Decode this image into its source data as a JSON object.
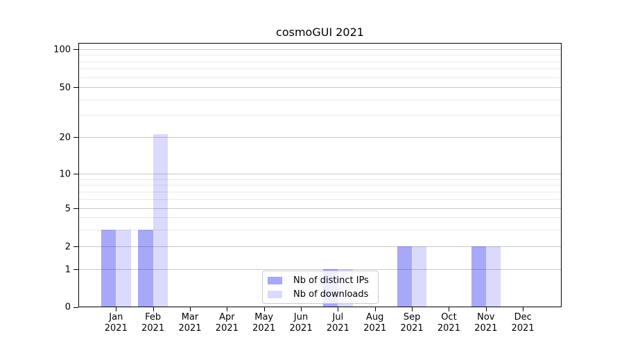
{
  "title": "cosmoGUI 2021",
  "chart_data": {
    "type": "bar",
    "title": "cosmoGUI 2021",
    "categories": [
      {
        "month": "Jan",
        "year": "2021"
      },
      {
        "month": "Feb",
        "year": "2021"
      },
      {
        "month": "Mar",
        "year": "2021"
      },
      {
        "month": "Apr",
        "year": "2021"
      },
      {
        "month": "May",
        "year": "2021"
      },
      {
        "month": "Jun",
        "year": "2021"
      },
      {
        "month": "Jul",
        "year": "2021"
      },
      {
        "month": "Aug",
        "year": "2021"
      },
      {
        "month": "Sep",
        "year": "2021"
      },
      {
        "month": "Oct",
        "year": "2021"
      },
      {
        "month": "Nov",
        "year": "2021"
      },
      {
        "month": "Dec",
        "year": "2021"
      }
    ],
    "series": [
      {
        "name": "Nb of distinct IPs",
        "color": "rgba(10,10,235,0.355)",
        "color_hex_on_white": "#a8a8f8",
        "values": [
          3,
          3,
          0,
          0,
          0,
          0,
          1,
          0,
          2,
          0,
          2,
          0
        ]
      },
      {
        "name": "Nb of downloads",
        "color": "rgba(10,10,235,0.15)",
        "color_hex_on_white": "#d8d8fc",
        "values": [
          3,
          21,
          0,
          0,
          0,
          0,
          1,
          0,
          2,
          0,
          2,
          0
        ]
      }
    ],
    "y_axis": {
      "scale": "symlog-like",
      "tick_labels": [
        "100",
        "50",
        "20",
        "10",
        "5",
        "2",
        "1",
        "0"
      ],
      "major_ticks": [
        100,
        50,
        20,
        10,
        5,
        2,
        1,
        0
      ],
      "minor_gridlines": [
        3,
        4,
        6,
        7,
        8,
        9,
        30,
        40,
        60,
        70,
        80,
        90
      ],
      "ylim": [
        0,
        110
      ]
    },
    "x_axis": {
      "ylabel": "",
      "tick_label_lines": 2
    },
    "legend": {
      "position": "lower center",
      "entries": [
        "Nb of distinct IPs",
        "Nb of downloads"
      ]
    },
    "grid": {
      "horizontal": true,
      "major_color": "#c9c9c9",
      "minor_color": "#e9e9e9"
    }
  }
}
